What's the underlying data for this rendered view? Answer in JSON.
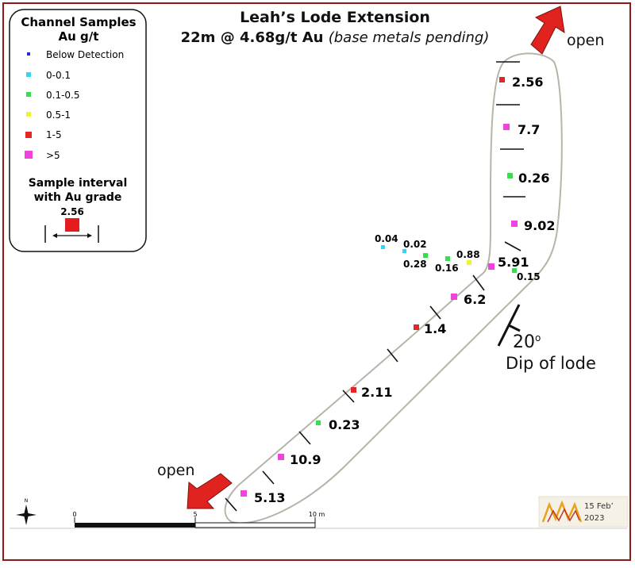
{
  "title": "Leah’s Lode Extension",
  "subtitle_main": "22m @ 4.68g/t Au ",
  "subtitle_note": "(base metals pending)",
  "legend": {
    "title_line1": "Channel Samples",
    "title_line2": "Au g/t",
    "items": [
      {
        "label": "Below Detection",
        "color": "#2b2bd6"
      },
      {
        "label": "0-0.1",
        "color": "#33d6ee"
      },
      {
        "label": "0.1-0.5",
        "color": "#33e24a"
      },
      {
        "label": "0.5-1",
        "color": "#f2f22e"
      },
      {
        "label": "1-5",
        "color": "#e02828"
      },
      {
        "label": ">5",
        "color": "#ee44dd"
      }
    ],
    "interval_title_line1": "Sample interval",
    "interval_title_line2": "with Au grade",
    "interval_example": "2.56"
  },
  "samples": [
    {
      "grade": "2.56",
      "class": "1-5"
    },
    {
      "grade": "7.7",
      "class": ">5"
    },
    {
      "grade": "0.26",
      "class": "0.1-0.5"
    },
    {
      "grade": "9.02",
      "class": ">5"
    },
    {
      "grade": "5.91",
      "class": ">5"
    },
    {
      "grade": "0.15",
      "class": "0.1-0.5"
    },
    {
      "grade": "0.88",
      "class": "0.5-1"
    },
    {
      "grade": "0.16",
      "class": "0.1-0.5"
    },
    {
      "grade": "0.28",
      "class": "0.1-0.5"
    },
    {
      "grade": "0.02",
      "class": "0-0.1"
    },
    {
      "grade": "0.04",
      "class": "0-0.1"
    },
    {
      "grade": "6.2",
      "class": ">5"
    },
    {
      "grade": "1.4",
      "class": "1-5"
    },
    {
      "grade": "2.11",
      "class": "1-5"
    },
    {
      "grade": "0.23",
      "class": "0.1-0.5"
    },
    {
      "grade": "10.9",
      "class": ">5"
    },
    {
      "grade": "5.13",
      "class": ">5"
    }
  ],
  "open_top": "open",
  "open_bottom": "open",
  "dip_value": "20",
  "dip_unit": "o",
  "dip_label": "Dip of lode",
  "north_label": "N",
  "scale": {
    "label_0": "0",
    "label_5": "5",
    "label_10": "10 m"
  },
  "logo": {
    "date_line1": "15 Feb’",
    "date_line2": "2023"
  },
  "colors": {
    "frame": "#8b1a1a",
    "outline": "#b8b4a8",
    "arrow": "#e0231f"
  }
}
